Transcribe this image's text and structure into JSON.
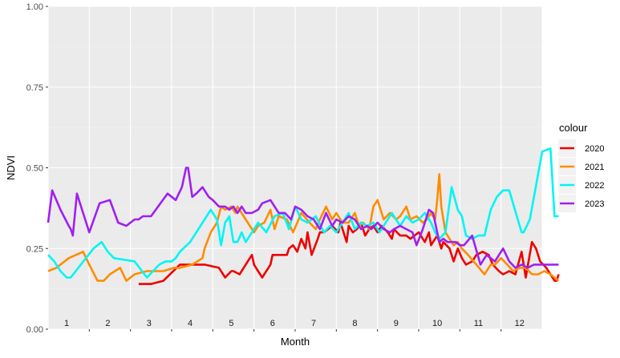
{
  "chart_data": {
    "type": "line",
    "xlabel": "Month",
    "ylabel": "NDVI",
    "ylim": [
      0,
      1
    ],
    "xlim": [
      0,
      12
    ],
    "y_ticks": [
      "0.00",
      "0.25",
      "0.50",
      "0.75",
      "1.00"
    ],
    "x_tick_labels": [
      "1",
      "2",
      "3",
      "4",
      "5",
      "6",
      "7",
      "8",
      "9",
      "10",
      "11",
      "12"
    ],
    "grid": true,
    "legend": {
      "title": "colour",
      "position": "right"
    },
    "series": [
      {
        "name": "2020",
        "color": "#ee0000",
        "x": [
          2.2,
          2.5,
          2.8,
          3.2,
          3.5,
          3.65,
          3.8,
          4.15,
          4.3,
          4.45,
          4.5,
          4.65,
          4.9,
          4.95,
          5.0,
          5.1,
          5.2,
          5.4,
          5.45,
          5.6,
          5.8,
          5.85,
          5.95,
          6.05,
          6.15,
          6.25,
          6.3,
          6.4,
          6.55,
          6.6,
          6.7,
          6.8,
          6.9,
          7.05,
          7.1,
          7.25,
          7.3,
          7.4,
          7.5,
          7.6,
          7.7,
          7.8,
          7.9,
          8.0,
          8.1,
          8.25,
          8.35,
          8.4,
          8.55,
          8.7,
          8.8,
          9.0,
          9.15,
          9.25,
          9.3,
          9.45,
          9.55,
          9.6,
          9.75,
          9.85,
          9.95,
          10.05,
          10.15,
          10.3,
          10.4,
          10.55,
          10.7,
          10.8,
          10.95,
          11.05,
          11.2,
          11.35,
          11.5,
          11.6,
          11.75,
          11.85,
          11.95,
          12.1,
          12.2,
          12.3,
          12.35,
          12.4
        ],
        "y": [
          0.14,
          0.14,
          0.15,
          0.2,
          0.2,
          0.2,
          0.2,
          0.19,
          0.16,
          0.18,
          0.18,
          0.17,
          0.22,
          0.23,
          0.2,
          0.18,
          0.16,
          0.2,
          0.23,
          0.23,
          0.23,
          0.25,
          0.26,
          0.24,
          0.28,
          0.25,
          0.3,
          0.23,
          0.28,
          0.3,
          0.3,
          0.31,
          0.32,
          0.3,
          0.33,
          0.27,
          0.32,
          0.3,
          0.31,
          0.33,
          0.29,
          0.31,
          0.32,
          0.3,
          0.32,
          0.3,
          0.28,
          0.31,
          0.29,
          0.29,
          0.28,
          0.3,
          0.27,
          0.3,
          0.26,
          0.29,
          0.25,
          0.27,
          0.25,
          0.21,
          0.25,
          0.22,
          0.2,
          0.21,
          0.23,
          0.24,
          0.23,
          0.2,
          0.18,
          0.17,
          0.18,
          0.17,
          0.24,
          0.16,
          0.27,
          0.25,
          0.21,
          0.19,
          0.17,
          0.15,
          0.15,
          0.17
        ]
      },
      {
        "name": "2021",
        "color": "#ff8c00",
        "x": [
          0.0,
          0.2,
          0.5,
          0.85,
          1.0,
          1.2,
          1.35,
          1.5,
          1.75,
          1.9,
          2.1,
          2.4,
          2.8,
          3.05,
          3.2,
          3.5,
          3.75,
          3.8,
          3.95,
          4.1,
          4.2,
          4.3,
          4.45,
          4.55,
          4.6,
          4.75,
          4.9,
          5.0,
          5.1,
          5.25,
          5.4,
          5.5,
          5.6,
          5.8,
          5.95,
          6.05,
          6.15,
          6.35,
          6.5,
          6.6,
          6.75,
          6.9,
          7.0,
          7.15,
          7.3,
          7.45,
          7.55,
          7.65,
          7.8,
          7.9,
          8.0,
          8.15,
          8.3,
          8.45,
          8.55,
          8.7,
          8.8,
          8.95,
          9.1,
          9.2,
          9.3,
          9.4,
          9.45,
          9.5,
          9.55,
          9.65,
          9.75,
          9.85,
          9.95,
          10.05,
          10.2,
          10.4,
          10.6,
          10.75,
          10.85,
          11.0,
          11.15,
          11.3,
          11.45,
          11.6,
          11.75,
          11.9,
          12.05,
          12.2,
          12.4
        ],
        "y": [
          0.18,
          0.19,
          0.22,
          0.24,
          0.2,
          0.15,
          0.15,
          0.17,
          0.19,
          0.15,
          0.17,
          0.18,
          0.18,
          0.19,
          0.19,
          0.2,
          0.22,
          0.25,
          0.3,
          0.33,
          0.38,
          0.37,
          0.38,
          0.36,
          0.38,
          0.35,
          0.32,
          0.3,
          0.32,
          0.33,
          0.37,
          0.31,
          0.35,
          0.34,
          0.3,
          0.33,
          0.36,
          0.33,
          0.31,
          0.34,
          0.38,
          0.34,
          0.36,
          0.33,
          0.33,
          0.36,
          0.32,
          0.33,
          0.31,
          0.38,
          0.4,
          0.34,
          0.36,
          0.34,
          0.35,
          0.38,
          0.34,
          0.35,
          0.33,
          0.34,
          0.36,
          0.34,
          0.4,
          0.48,
          0.38,
          0.3,
          0.28,
          0.26,
          0.27,
          0.25,
          0.23,
          0.2,
          0.17,
          0.2,
          0.2,
          0.22,
          0.2,
          0.18,
          0.19,
          0.19,
          0.17,
          0.17,
          0.18,
          0.17,
          0.15
        ]
      },
      {
        "name": "2022",
        "color": "#00f5f5",
        "x": [
          0.0,
          0.15,
          0.3,
          0.45,
          0.55,
          1.1,
          1.3,
          1.45,
          1.6,
          2.1,
          2.4,
          2.7,
          2.85,
          3.0,
          3.1,
          3.2,
          3.45,
          3.6,
          3.8,
          3.95,
          4.1,
          4.2,
          4.3,
          4.4,
          4.5,
          4.6,
          4.7,
          4.8,
          4.9,
          5.0,
          5.1,
          5.3,
          5.5,
          5.7,
          5.85,
          6.0,
          6.15,
          6.3,
          6.5,
          6.7,
          6.85,
          7.0,
          7.15,
          7.3,
          7.45,
          7.6,
          7.75,
          7.9,
          8.05,
          8.2,
          8.35,
          8.55,
          8.7,
          8.85,
          9.0,
          9.15,
          9.3,
          9.4,
          9.5,
          9.65,
          9.8,
          9.95,
          10.05,
          10.15,
          10.3,
          10.45,
          10.6,
          10.75,
          10.9,
          11.05,
          11.2,
          11.5,
          11.55,
          11.7,
          12.0,
          12.2,
          12.3,
          12.35,
          12.4
        ],
        "y": [
          0.23,
          0.21,
          0.18,
          0.16,
          0.16,
          0.25,
          0.27,
          0.24,
          0.22,
          0.21,
          0.16,
          0.2,
          0.21,
          0.21,
          0.22,
          0.24,
          0.27,
          0.3,
          0.34,
          0.37,
          0.34,
          0.26,
          0.33,
          0.35,
          0.27,
          0.27,
          0.3,
          0.27,
          0.29,
          0.31,
          0.33,
          0.3,
          0.35,
          0.36,
          0.31,
          0.38,
          0.34,
          0.33,
          0.35,
          0.3,
          0.32,
          0.3,
          0.33,
          0.36,
          0.31,
          0.33,
          0.32,
          0.33,
          0.3,
          0.33,
          0.36,
          0.32,
          0.35,
          0.33,
          0.34,
          0.36,
          0.33,
          0.3,
          0.28,
          0.3,
          0.44,
          0.37,
          0.35,
          0.29,
          0.28,
          0.29,
          0.29,
          0.37,
          0.41,
          0.43,
          0.43,
          0.3,
          0.3,
          0.34,
          0.55,
          0.56,
          0.35,
          0.35,
          0.35
        ],
        "y_override": [
          0.23,
          0.21,
          0.18,
          0.16,
          0.17,
          0.25,
          0.27,
          0.24,
          0.22,
          0.2,
          0.16,
          0.2,
          0.21,
          0.2,
          0.21,
          0.24,
          0.27,
          0.3,
          0.34,
          0.36,
          0.36,
          0.27,
          0.32,
          0.35,
          0.27,
          0.28,
          0.3,
          0.27,
          0.3,
          0.31,
          0.33,
          0.31,
          0.35,
          0.36,
          0.31,
          0.38,
          0.34,
          0.32,
          0.35,
          0.3,
          0.33,
          0.3,
          0.33,
          0.36,
          0.31,
          0.34,
          0.32,
          0.33,
          0.3,
          0.33,
          0.36,
          0.32,
          0.35,
          0.33,
          0.34,
          0.36,
          0.33,
          0.29,
          0.28,
          0.3,
          0.44,
          0.37,
          0.36,
          0.29,
          0.28,
          0.3,
          0.29,
          0.37,
          0.42,
          0.44,
          0.44,
          0.3,
          0.3,
          0.34,
          0.55,
          0.57,
          0.35,
          0.34,
          0.35
        ]
      },
      {
        "name": "2023",
        "color": "#a020f0",
        "x": [
          0.0,
          0.1,
          0.3,
          0.5,
          0.55,
          0.6,
          0.7,
          1.0,
          1.25,
          1.5,
          1.7,
          1.9,
          2.1,
          2.2,
          2.3,
          2.5,
          2.9,
          3.1,
          3.25,
          3.35,
          3.4,
          3.5,
          3.6,
          3.75,
          3.9,
          4.0,
          4.15,
          4.3,
          4.4,
          4.5,
          4.6,
          4.7,
          4.8,
          4.95,
          5.1,
          5.2,
          5.4,
          5.6,
          5.75,
          5.9,
          6.0,
          6.15,
          6.3,
          6.45,
          6.6,
          6.75,
          6.9,
          7.0,
          7.15,
          7.3,
          7.45,
          7.6,
          7.75,
          7.85,
          8.0,
          8.15,
          8.3,
          8.4,
          8.55,
          8.7,
          8.85,
          8.95,
          9.1,
          9.25,
          9.35,
          9.5,
          9.6,
          9.7,
          9.8,
          9.9,
          10.0,
          10.1,
          10.3,
          10.5,
          10.65,
          10.75,
          10.85,
          11.0,
          11.05,
          11.2,
          11.35,
          11.5,
          11.65,
          11.8,
          11.95,
          12.1,
          12.25,
          12.4
        ],
        "y": [
          0.33,
          0.43,
          0.37,
          0.32,
          0.31,
          0.29,
          0.42,
          0.3,
          0.39,
          0.4,
          0.33,
          0.32,
          0.34,
          0.34,
          0.35,
          0.35,
          0.42,
          0.4,
          0.44,
          0.5,
          0.5,
          0.41,
          0.42,
          0.44,
          0.41,
          0.4,
          0.38,
          0.38,
          0.37,
          0.38,
          0.36,
          0.38,
          0.36,
          0.36,
          0.37,
          0.39,
          0.4,
          0.36,
          0.36,
          0.34,
          0.38,
          0.37,
          0.35,
          0.34,
          0.31,
          0.36,
          0.32,
          0.34,
          0.33,
          0.35,
          0.34,
          0.31,
          0.32,
          0.31,
          0.33,
          0.31,
          0.3,
          0.31,
          0.32,
          0.31,
          0.3,
          0.26,
          0.31,
          0.37,
          0.36,
          0.27,
          0.28,
          0.27,
          0.27,
          0.27,
          0.26,
          0.26,
          0.29,
          0.2,
          0.23,
          0.22,
          0.21,
          0.24,
          0.25,
          0.21,
          0.19,
          0.2,
          0.19,
          0.2,
          0.2,
          0.2,
          0.2,
          0.2
        ]
      }
    ]
  }
}
